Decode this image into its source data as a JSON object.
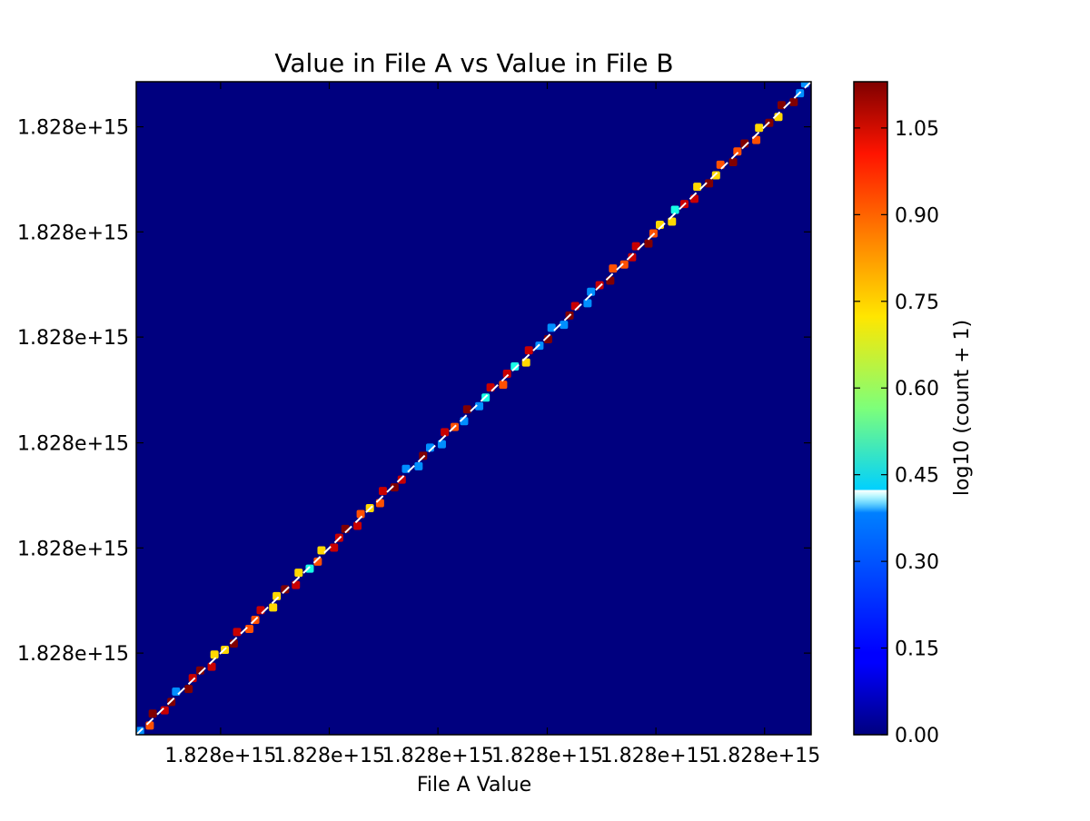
{
  "chart_data": {
    "type": "heatmap",
    "title": "Value in File A vs Value in File B",
    "xlabel": "File A Value",
    "ylabel": "",
    "xlim": [
      0,
      1
    ],
    "ylim": [
      0,
      1
    ],
    "x_tick_values": [
      0.125,
      0.286,
      0.447,
      0.609,
      0.77,
      0.931
    ],
    "x_tick_labels": [
      "1.828e+15",
      "1.828e+15",
      "1.828e+15",
      "1.828e+15",
      "1.828e+15",
      "1.828e+15"
    ],
    "y_tick_values": [
      0.125,
      0.286,
      0.447,
      0.609,
      0.77,
      0.931
    ],
    "y_tick_labels": [
      "1.828e+15",
      "1.828e+15",
      "1.828e+15",
      "1.828e+15",
      "1.828e+15",
      "1.828e+15"
    ],
    "reference_line": {
      "style": "dashed",
      "color": "#ffffff",
      "from": [
        0,
        0
      ],
      "to": [
        1,
        1
      ]
    },
    "colorbar": {
      "label": "log10 (count + 1)",
      "range": [
        0,
        1.13
      ],
      "ticks": [
        0.0,
        0.15,
        0.3,
        0.45,
        0.6,
        0.75,
        0.9,
        1.05
      ],
      "tick_labels": [
        "0.00",
        "0.15",
        "0.30",
        "0.45",
        "0.60",
        "0.75",
        "0.90",
        "1.05"
      ],
      "colormap": "jet"
    },
    "background_color": "#00007f",
    "bin_values": [
      0.3,
      0.9,
      1.13,
      1.05,
      1.13,
      0.3,
      1.13,
      1.05,
      1.13,
      1.05,
      0.75,
      0.75,
      1.13,
      1.05,
      0.9,
      0.9,
      1.05,
      0.75,
      0.75,
      1.13,
      1.05,
      0.75,
      0.45,
      0.9,
      0.75,
      1.05,
      1.05,
      1.13,
      1.05,
      0.9,
      0.75,
      0.9,
      1.05,
      1.13,
      1.05,
      0.3,
      0.3,
      1.13,
      0.3,
      0.3,
      1.05,
      0.9,
      0.3,
      1.13,
      0.3,
      0.45,
      1.05,
      0.9,
      1.05,
      0.45,
      0.75,
      1.05,
      0.3,
      1.13,
      0.3,
      0.3,
      1.13,
      1.05,
      0.3,
      0.3,
      1.05,
      1.13,
      0.9,
      0.9,
      1.05,
      1.05,
      1.13,
      0.9,
      0.75,
      0.75,
      0.45,
      1.05,
      1.05,
      0.75,
      1.13,
      0.75,
      0.9,
      1.13,
      0.9,
      1.13,
      0.9,
      0.75,
      1.13,
      0.75,
      1.13,
      1.13,
      0.3,
      0.3
    ]
  }
}
